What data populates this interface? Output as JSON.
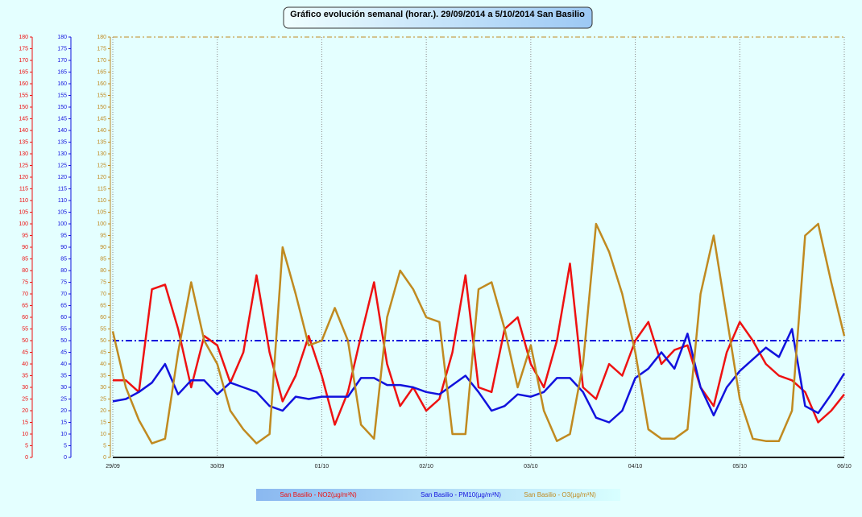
{
  "chart_data": {
    "type": "line",
    "title": "Gráfico evolución semanal (horar.). 29/09/2014 a 5/10/2014 San Basilio",
    "categories": [
      "29/09",
      null,
      null,
      null,
      null,
      null,
      null,
      null,
      "30/09",
      null,
      null,
      null,
      null,
      null,
      null,
      null,
      "01/10",
      null,
      null,
      null,
      null,
      null,
      null,
      null,
      "02/10",
      null,
      null,
      null,
      null,
      null,
      null,
      null,
      "03/10",
      null,
      null,
      null,
      null,
      null,
      null,
      null,
      "04/10",
      null,
      null,
      null,
      null,
      null,
      null,
      null,
      "05/10",
      null,
      null,
      null,
      null,
      null,
      null,
      null,
      "06/10"
    ],
    "series": [
      {
        "name": "San Basilio - NO2(µg/m³N)",
        "color": "#ee1111",
        "values": [
          33,
          33,
          28,
          72,
          74,
          55,
          30,
          52,
          48,
          32,
          45,
          78,
          45,
          24,
          35,
          52,
          35,
          14,
          28,
          52,
          75,
          40,
          22,
          30,
          20,
          25,
          45,
          78,
          30,
          28,
          55,
          60,
          40,
          30,
          50,
          83,
          30,
          25,
          40,
          35,
          50,
          58,
          40,
          46,
          48,
          30,
          22,
          45,
          58,
          50,
          40,
          35,
          33,
          28,
          15,
          20,
          27
        ]
      },
      {
        "name": "San Basilio - PM10(µg/m³N)",
        "color": "#1111dd",
        "values": [
          24,
          25,
          28,
          32,
          40,
          27,
          33,
          33,
          27,
          32,
          30,
          28,
          22,
          20,
          26,
          25,
          26,
          26,
          26,
          34,
          34,
          31,
          31,
          30,
          28,
          27,
          31,
          35,
          28,
          20,
          22,
          27,
          26,
          28,
          34,
          34,
          28,
          17,
          15,
          20,
          34,
          38,
          45,
          38,
          53,
          30,
          18,
          30,
          37,
          42,
          47,
          43,
          55,
          22,
          19,
          27,
          36
        ]
      },
      {
        "name": "San Basilio - O3(µg/m³N)",
        "color": "#c08a20",
        "values": [
          54,
          30,
          16,
          6,
          8,
          45,
          75,
          50,
          40,
          20,
          12,
          6,
          10,
          90,
          70,
          48,
          50,
          64,
          50,
          14,
          8,
          60,
          80,
          72,
          60,
          58,
          10,
          10,
          72,
          75,
          55,
          30,
          48,
          20,
          7,
          10,
          40,
          100,
          88,
          70,
          45,
          12,
          8,
          8,
          12,
          70,
          95,
          60,
          25,
          8,
          7,
          7,
          20,
          95,
          100,
          75,
          52
        ]
      }
    ],
    "ylim": [
      0,
      180
    ],
    "yticks": [
      0,
      5,
      10,
      15,
      20,
      25,
      30,
      35,
      40,
      45,
      50,
      55,
      60,
      65,
      70,
      75,
      80,
      85,
      90,
      95,
      100,
      105,
      110,
      115,
      120,
      125,
      130,
      135,
      140,
      145,
      150,
      155,
      160,
      165,
      170,
      175,
      180
    ],
    "reference_line": {
      "value": 50,
      "color": "#1111dd"
    },
    "grid": true
  }
}
